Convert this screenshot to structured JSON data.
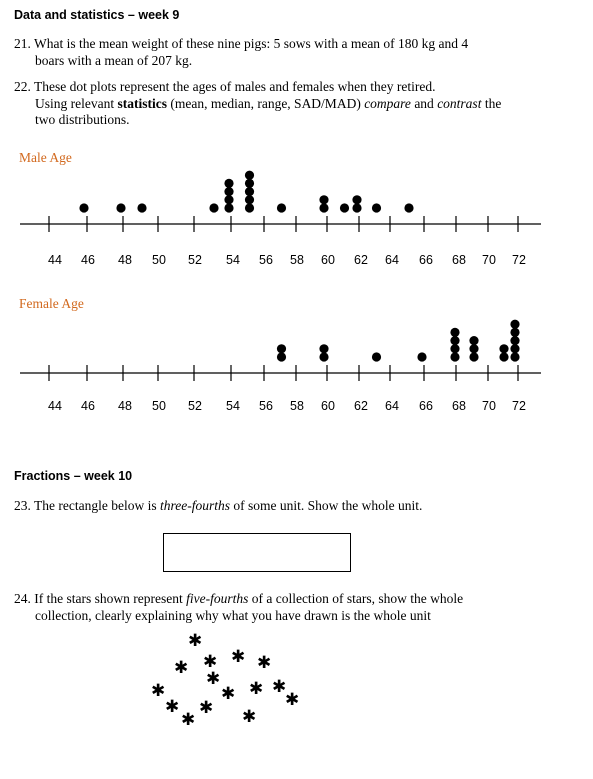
{
  "sections": {
    "stats_heading": "Data and statistics – week 9",
    "fractions_heading": "Fractions – week 10"
  },
  "questions": {
    "q21": {
      "line1": "21. What is the mean weight of these nine pigs: 5 sows with a mean of 180 kg and 4",
      "line2": "boars with a mean of 207 kg."
    },
    "q22": {
      "line1": "22. These dot plots represent the ages of males and females when they retired.",
      "line2_pre": "Using relevant ",
      "line2_bold": "statistics",
      "line2_mid": " (mean, median, range, SAD/MAD) ",
      "line2_italic1": "compare",
      "line2_and": " and ",
      "line2_italic2": "contrast",
      "line2_post": " the",
      "line3": "two distributions."
    },
    "q23": {
      "pre": "23. The rectangle below is ",
      "italic": "three-fourths",
      "post": " of some unit. Show the whole unit."
    },
    "q24": {
      "pre": "24. If the stars shown represent ",
      "italic": "five-fourths",
      "post": " of a collection of stars, show the whole",
      "line2": "collection, clearly explaining why what you have drawn is the whole unit"
    }
  },
  "star_glyph": "✱",
  "stars_count": 15,
  "chart_data": [
    {
      "type": "dot-plot",
      "title": "Male Age",
      "tick_labels": [
        "44",
        "46",
        "48",
        "50",
        "52",
        "54",
        "56",
        "58",
        "60",
        "62",
        "64",
        "66",
        "68",
        "70",
        "72"
      ],
      "dots": [
        {
          "x": 46,
          "count": 1
        },
        {
          "x": 48,
          "count": 1
        },
        {
          "x": 49,
          "count": 1
        },
        {
          "x": 53,
          "count": 1
        },
        {
          "x": 54,
          "count": 4
        },
        {
          "x": 55,
          "count": 5
        },
        {
          "x": 57,
          "count": 1
        },
        {
          "x": 60,
          "count": 2
        },
        {
          "x": 61,
          "count": 1
        },
        {
          "x": 62,
          "count": 2
        },
        {
          "x": 63,
          "count": 1
        },
        {
          "x": 65,
          "count": 1
        }
      ]
    },
    {
      "type": "dot-plot",
      "title": "Female Age",
      "tick_labels": [
        "44",
        "46",
        "48",
        "50",
        "52",
        "54",
        "56",
        "58",
        "60",
        "62",
        "64",
        "66",
        "68",
        "70",
        "72"
      ],
      "dots": [
        {
          "x": 57,
          "count": 2
        },
        {
          "x": 60,
          "count": 2
        },
        {
          "x": 63,
          "count": 1
        },
        {
          "x": 66,
          "count": 1
        },
        {
          "x": 68,
          "count": 4
        },
        {
          "x": 69,
          "count": 3
        },
        {
          "x": 71,
          "count": 2
        },
        {
          "x": 72,
          "count": 5
        }
      ]
    }
  ]
}
